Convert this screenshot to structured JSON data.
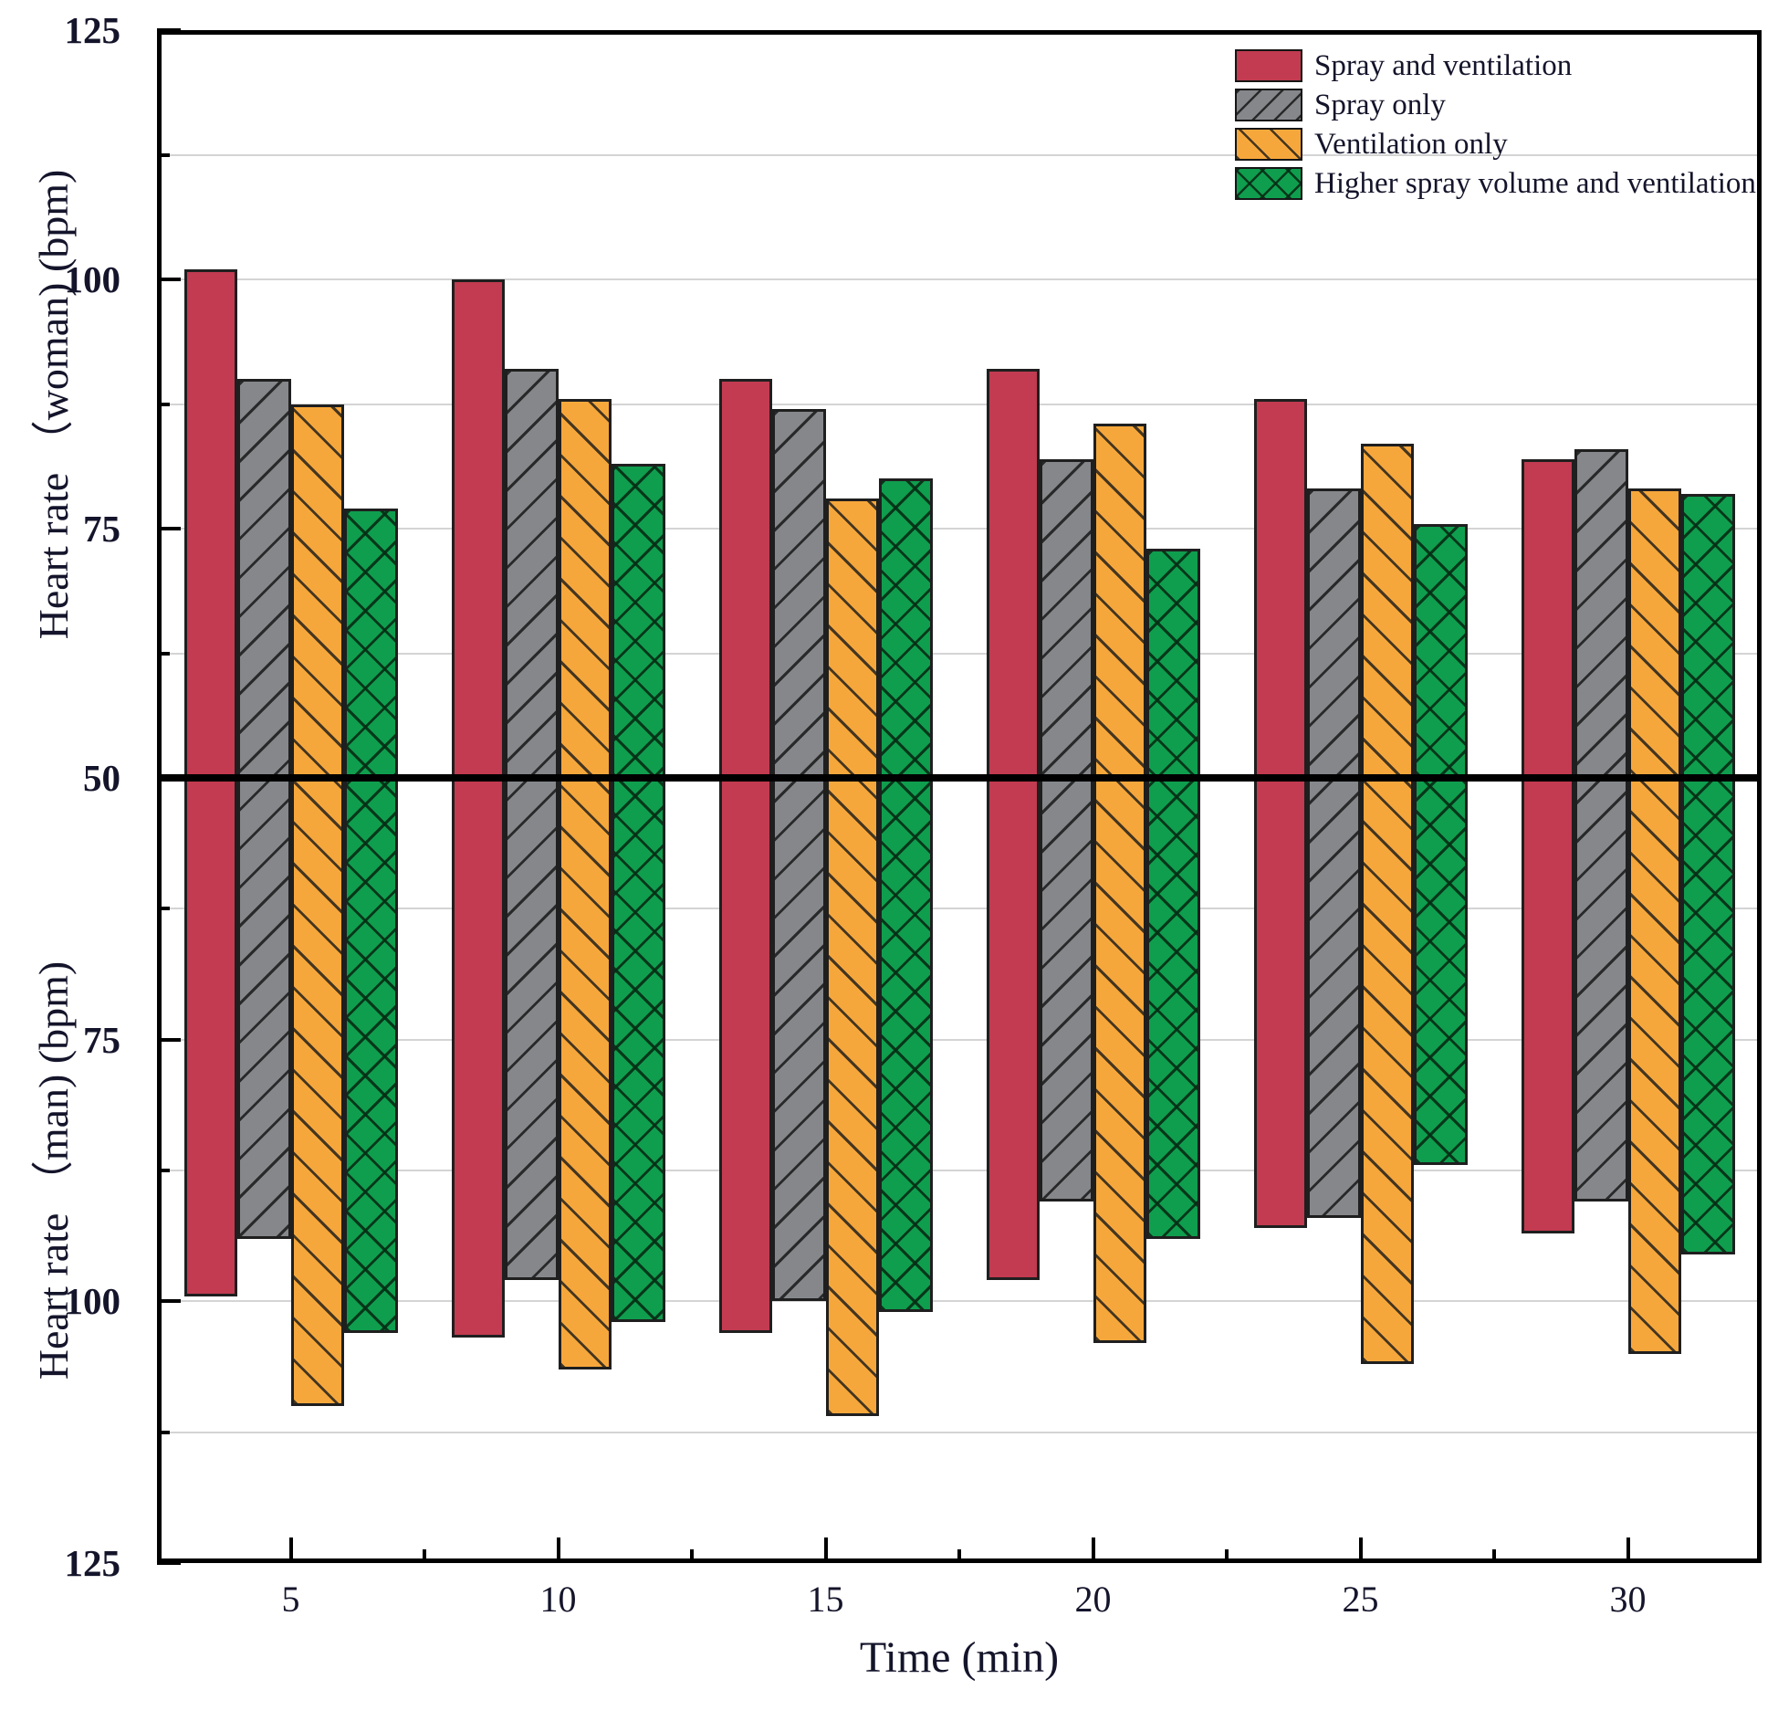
{
  "chart_data": {
    "type": "bar",
    "title": "",
    "xlabel": "Time (min)",
    "ylabel_top": "Heart rate （woman) (bpm)",
    "ylabel_bottom": "Heart rate （man) (bpm)",
    "categories": [
      5,
      10,
      15,
      20,
      25,
      30
    ],
    "x_ticks": [
      {
        "label": "5",
        "value": 5
      },
      {
        "label": "10",
        "value": 10
      },
      {
        "label": "15",
        "value": 15
      },
      {
        "label": "20",
        "value": 20
      },
      {
        "label": "25",
        "value": 25
      },
      {
        "label": "30",
        "value": 30
      }
    ],
    "y_ticks_top": [
      {
        "label": "125",
        "value": 125
      },
      {
        "label": "100",
        "value": 100
      },
      {
        "label": "75",
        "value": 75
      }
    ],
    "y_mid_tick": {
      "label": "50",
      "value": 50
    },
    "y_ticks_bottom": [
      {
        "label": "75",
        "value": 75
      },
      {
        "label": "100",
        "value": 100
      },
      {
        "label": "125",
        "value": 125
      }
    ],
    "ylim_top": [
      50,
      125
    ],
    "ylim_bottom": [
      50,
      125
    ],
    "grid_interval": 12.5,
    "grid_on": true,
    "legend_position": "top-right",
    "series": [
      {
        "name": "Spray and ventilation",
        "color": "#c23b50",
        "hatch": "none",
        "woman": [
          101,
          100,
          90,
          91,
          88,
          82
        ],
        "man": [
          99.5,
          103.5,
          103,
          98,
          93,
          93.5
        ]
      },
      {
        "name": "Spray only",
        "color": "#85878b",
        "hatch": "forward",
        "woman": [
          90,
          91,
          87,
          82,
          79,
          83
        ],
        "man": [
          94,
          98,
          100,
          90.5,
          92,
          90.5
        ]
      },
      {
        "name": "Ventilation only",
        "color": "#f6a73b",
        "hatch": "backward",
        "woman": [
          87.5,
          88,
          78,
          85.5,
          83.5,
          79
        ],
        "man": [
          110,
          106.5,
          111,
          104,
          106,
          105
        ]
      },
      {
        "name": "Higher spray volume and ventilation",
        "color": "#0f9e4e",
        "hatch": "cross",
        "woman": [
          77,
          81.5,
          80,
          73,
          75.5,
          78.5
        ],
        "man": [
          103,
          102,
          101,
          94,
          87,
          95.5
        ]
      }
    ]
  }
}
